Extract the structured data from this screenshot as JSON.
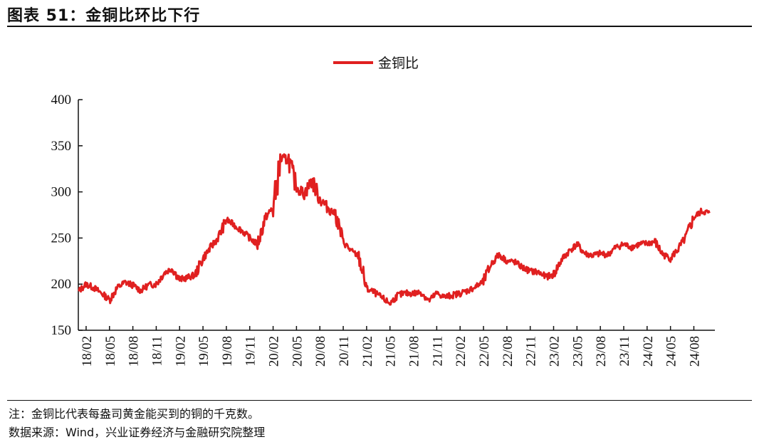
{
  "header": {
    "title": "图表 51：金铜比环比下行"
  },
  "footer": {
    "note": "注：金铜比代表每盎司黄金能买到的铜的千克数。",
    "source": "数据来源：Wind，兴业证券经济与金融研究院整理"
  },
  "chart_data": {
    "type": "line",
    "title": "",
    "xlabel": "",
    "ylabel": "",
    "ylim": [
      150,
      400
    ],
    "yticks": [
      150,
      200,
      250,
      300,
      350,
      400
    ],
    "xlim": [
      "2018-01",
      "2024-10"
    ],
    "xticks": [
      "18/02",
      "18/05",
      "18/08",
      "18/11",
      "19/02",
      "19/05",
      "19/08",
      "19/11",
      "20/02",
      "20/05",
      "20/08",
      "20/11",
      "21/02",
      "21/05",
      "21/08",
      "21/11",
      "22/02",
      "22/05",
      "22/08",
      "22/11",
      "23/02",
      "23/05",
      "23/08",
      "23/11",
      "24/02",
      "24/05",
      "24/08"
    ],
    "legend": {
      "position": "top-center"
    },
    "grid": false,
    "series": [
      {
        "name": "金铜比",
        "color": "#e02020",
        "points": [
          [
            "2018-01",
            192
          ],
          [
            "2018-02",
            200
          ],
          [
            "2018-03",
            196
          ],
          [
            "2018-04",
            190
          ],
          [
            "2018-05",
            183
          ],
          [
            "2018-06",
            196
          ],
          [
            "2018-07",
            202
          ],
          [
            "2018-08",
            199
          ],
          [
            "2018-09",
            193
          ],
          [
            "2018-10",
            199
          ],
          [
            "2018-11",
            200
          ],
          [
            "2018-12",
            212
          ],
          [
            "2019-01",
            217
          ],
          [
            "2019-02",
            205
          ],
          [
            "2019-03",
            207
          ],
          [
            "2019-04",
            210
          ],
          [
            "2019-05",
            228
          ],
          [
            "2019-06",
            240
          ],
          [
            "2019-07",
            251
          ],
          [
            "2019-08",
            270
          ],
          [
            "2019-09",
            264
          ],
          [
            "2019-10",
            258
          ],
          [
            "2019-11",
            250
          ],
          [
            "2019-12",
            243
          ],
          [
            "2020-01",
            272
          ],
          [
            "2020-02",
            283
          ],
          [
            "2020-03",
            335
          ],
          [
            "2020-04",
            335
          ],
          [
            "2020-05",
            305
          ],
          [
            "2020-06",
            298
          ],
          [
            "2020-07",
            312
          ],
          [
            "2020-08",
            292
          ],
          [
            "2020-09",
            283
          ],
          [
            "2020-10",
            276
          ],
          [
            "2020-11",
            246
          ],
          [
            "2020-12",
            236
          ],
          [
            "2021-01",
            230
          ],
          [
            "2021-02",
            195
          ],
          [
            "2021-03",
            191
          ],
          [
            "2021-04",
            185
          ],
          [
            "2021-05",
            179
          ],
          [
            "2021-06",
            188
          ],
          [
            "2021-07",
            190
          ],
          [
            "2021-08",
            190
          ],
          [
            "2021-09",
            191
          ],
          [
            "2021-10",
            182
          ],
          [
            "2021-11",
            190
          ],
          [
            "2021-12",
            186
          ],
          [
            "2022-01",
            188
          ],
          [
            "2022-02",
            190
          ],
          [
            "2022-03",
            193
          ],
          [
            "2022-04",
            197
          ],
          [
            "2022-05",
            203
          ],
          [
            "2022-06",
            222
          ],
          [
            "2022-07",
            232
          ],
          [
            "2022-08",
            225
          ],
          [
            "2022-09",
            224
          ],
          [
            "2022-10",
            218
          ],
          [
            "2022-11",
            214
          ],
          [
            "2022-12",
            213
          ],
          [
            "2023-01",
            208
          ],
          [
            "2023-02",
            210
          ],
          [
            "2023-03",
            226
          ],
          [
            "2023-04",
            236
          ],
          [
            "2023-05",
            243
          ],
          [
            "2023-06",
            233
          ],
          [
            "2023-07",
            231
          ],
          [
            "2023-08",
            233
          ],
          [
            "2023-09",
            232
          ],
          [
            "2023-10",
            240
          ],
          [
            "2023-11",
            243
          ],
          [
            "2023-12",
            240
          ],
          [
            "2024-01",
            243
          ],
          [
            "2024-02",
            244
          ],
          [
            "2024-03",
            246
          ],
          [
            "2024-04",
            232
          ],
          [
            "2024-05",
            228
          ],
          [
            "2024-06",
            238
          ],
          [
            "2024-07",
            251
          ],
          [
            "2024-08",
            272
          ],
          [
            "2024-09",
            279
          ],
          [
            "2024-10",
            277
          ]
        ]
      }
    ]
  }
}
